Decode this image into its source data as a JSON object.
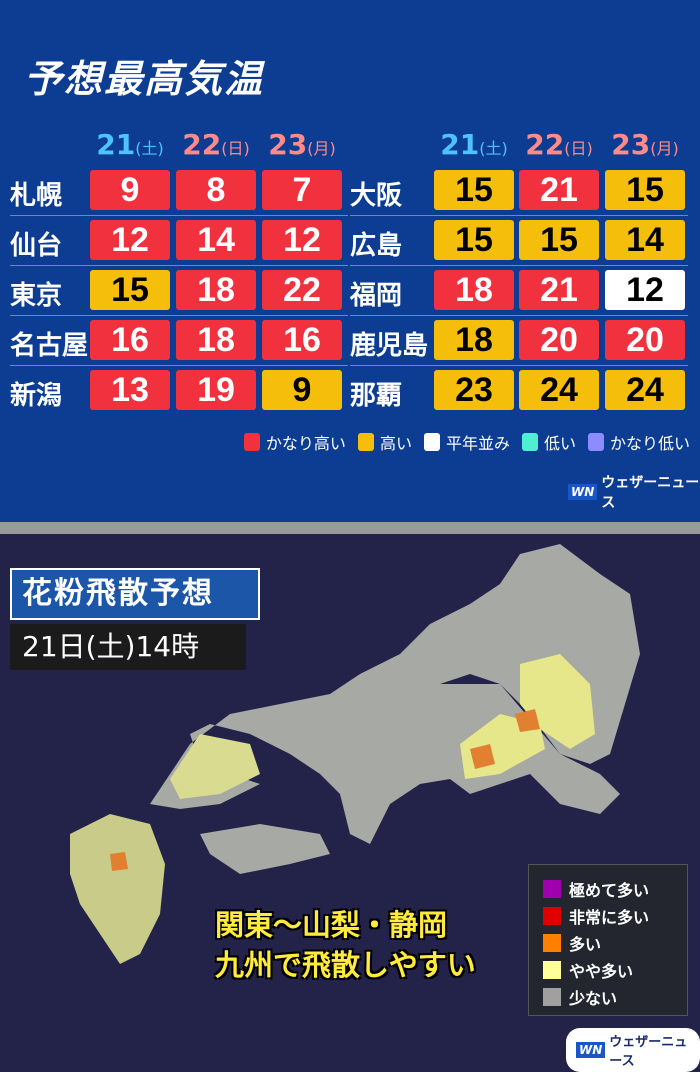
{
  "title": "予想最高気温",
  "days": [
    {
      "num": "21",
      "dow": "(土)"
    },
    {
      "num": "22",
      "dow": "(日)"
    },
    {
      "num": "23",
      "dow": "(月)"
    }
  ],
  "colors": {
    "かなり高い": "#f2313f",
    "高い": "#f5be0b",
    "平年並み": "#ffffff",
    "低い": "#4ff0d2",
    "かなり低い": "#8c8cff"
  },
  "left_cities": [
    {
      "name": "札幌",
      "temps": [
        "9",
        "8",
        "7"
      ],
      "levels": [
        "かなり高い",
        "かなり高い",
        "かなり高い"
      ]
    },
    {
      "name": "仙台",
      "temps": [
        "12",
        "14",
        "12"
      ],
      "levels": [
        "かなり高い",
        "かなり高い",
        "かなり高い"
      ]
    },
    {
      "name": "東京",
      "temps": [
        "15",
        "18",
        "22"
      ],
      "levels": [
        "高い",
        "かなり高い",
        "かなり高い"
      ]
    },
    {
      "name": "名古屋",
      "temps": [
        "16",
        "18",
        "16"
      ],
      "levels": [
        "かなり高い",
        "かなり高い",
        "かなり高い"
      ]
    },
    {
      "name": "新潟",
      "temps": [
        "13",
        "19",
        "9"
      ],
      "levels": [
        "かなり高い",
        "かなり高い",
        "高い"
      ]
    }
  ],
  "right_cities": [
    {
      "name": "大阪",
      "temps": [
        "15",
        "21",
        "15"
      ],
      "levels": [
        "高い",
        "かなり高い",
        "高い"
      ]
    },
    {
      "name": "広島",
      "temps": [
        "15",
        "15",
        "14"
      ],
      "levels": [
        "高い",
        "高い",
        "高い"
      ]
    },
    {
      "name": "福岡",
      "temps": [
        "18",
        "21",
        "12"
      ],
      "levels": [
        "かなり高い",
        "かなり高い",
        "平年並み"
      ]
    },
    {
      "name": "鹿児島",
      "temps": [
        "18",
        "20",
        "20"
      ],
      "levels": [
        "高い",
        "かなり高い",
        "かなり高い"
      ]
    },
    {
      "name": "那覇",
      "temps": [
        "23",
        "24",
        "24"
      ],
      "levels": [
        "高い",
        "高い",
        "高い"
      ]
    }
  ],
  "temp_legend": [
    "かなり高い",
    "高い",
    "平年並み",
    "低い",
    "かなり低い"
  ],
  "brand": {
    "mark": "WN",
    "name": "ウェザーニュース"
  },
  "pollen": {
    "title": "花粉飛散予想",
    "time": "21日(土)14時",
    "note": [
      "関東〜山梨・静岡",
      "九州で飛散しやすい"
    ],
    "legend": [
      {
        "label": "極めて多い",
        "color": "#a000b0"
      },
      {
        "label": "非常に多い",
        "color": "#e00000"
      },
      {
        "label": "多い",
        "color": "#ff8000"
      },
      {
        "label": "やや多い",
        "color": "#ffff99"
      },
      {
        "label": "少ない",
        "color": "#a0a0a0"
      }
    ]
  }
}
